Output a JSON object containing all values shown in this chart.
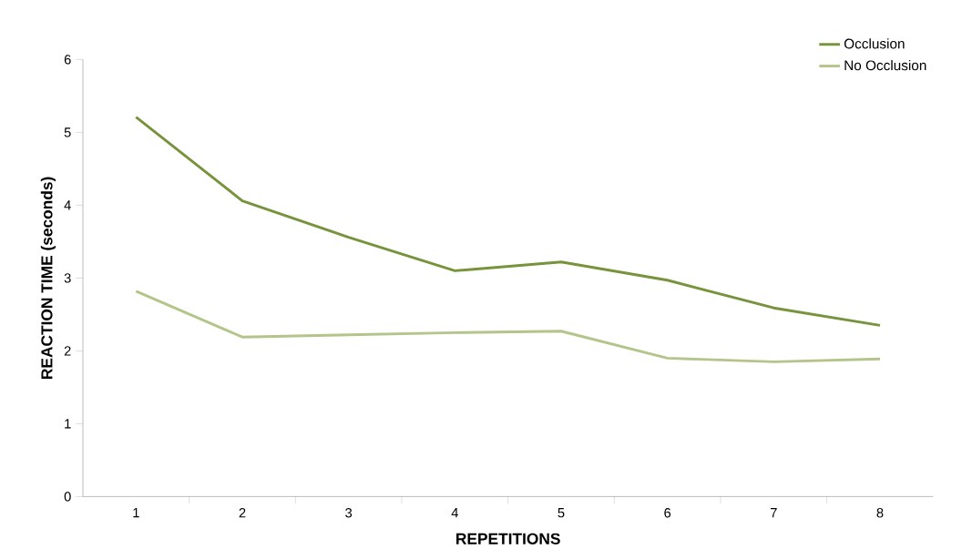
{
  "chart_data": {
    "type": "line",
    "xlabel": "REPETITIONS",
    "ylabel": "REACTION TIME (seconds)",
    "categories": [
      "1",
      "2",
      "3",
      "4",
      "5",
      "6",
      "7",
      "8"
    ],
    "series": [
      {
        "name": "Occlusion",
        "color": "#77933c",
        "values": [
          5.21,
          4.06,
          3.56,
          3.1,
          3.22,
          2.97,
          2.59,
          2.35
        ]
      },
      {
        "name": "No Occlusion",
        "color": "#b3c58a",
        "values": [
          2.82,
          2.19,
          2.22,
          2.25,
          2.27,
          1.9,
          1.85,
          1.89
        ]
      }
    ],
    "ylim": [
      0,
      6
    ],
    "yticks": [
      0,
      1,
      2,
      3,
      4,
      5,
      6
    ],
    "grid": false,
    "legend": "top right",
    "marker": "none"
  }
}
